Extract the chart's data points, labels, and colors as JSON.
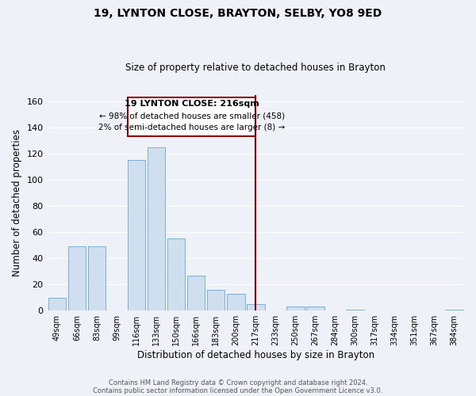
{
  "title": "19, LYNTON CLOSE, BRAYTON, SELBY, YO8 9ED",
  "subtitle": "Size of property relative to detached houses in Brayton",
  "xlabel": "Distribution of detached houses by size in Brayton",
  "ylabel": "Number of detached properties",
  "bar_color": "#cfdff0",
  "bar_edge_color": "#7aafd4",
  "categories": [
    "49sqm",
    "66sqm",
    "83sqm",
    "99sqm",
    "116sqm",
    "133sqm",
    "150sqm",
    "166sqm",
    "183sqm",
    "200sqm",
    "217sqm",
    "233sqm",
    "250sqm",
    "267sqm",
    "284sqm",
    "300sqm",
    "317sqm",
    "334sqm",
    "351sqm",
    "367sqm",
    "384sqm"
  ],
  "values": [
    10,
    49,
    49,
    0,
    115,
    125,
    55,
    27,
    16,
    13,
    5,
    0,
    3,
    3,
    0,
    1,
    0,
    0,
    0,
    0,
    1
  ],
  "ylim": [
    0,
    165
  ],
  "yticks": [
    0,
    20,
    40,
    60,
    80,
    100,
    120,
    140,
    160
  ],
  "marker_idx": 10,
  "annotation_title": "19 LYNTON CLOSE: 216sqm",
  "annotation_line1": "← 98% of detached houses are smaller (458)",
  "annotation_line2": "2% of semi-detached houses are larger (8) →",
  "footer1": "Contains HM Land Registry data © Crown copyright and database right 2024.",
  "footer2": "Contains public sector information licensed under the Open Government Licence v3.0.",
  "background_color": "#eef2f8",
  "grid_color": "#ffffff",
  "annotation_box_color": "#8b0000",
  "red_line_color": "#8b0000"
}
